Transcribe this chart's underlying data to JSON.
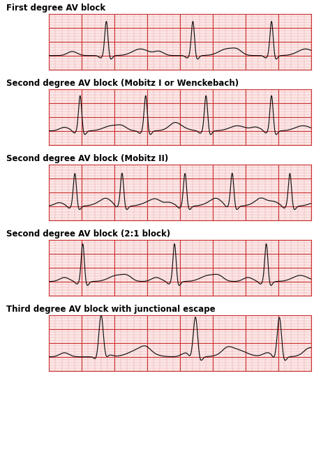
{
  "title_fontsize": 8.5,
  "title_fontweight": "bold",
  "ecg_color": "#111111",
  "grid_major_color": "#cc3333",
  "grid_minor_color": "#e8aaaa",
  "panel_bg": "#fce8e8",
  "white_bg": "#ffffff",
  "panels": [
    {
      "title": "First degree AV block",
      "type": "first_degree"
    },
    {
      "title": "Second degree AV block (Mobitz I or Wenckebach)",
      "type": "mobitz1"
    },
    {
      "title": "Second degree AV block (Mobitz II)",
      "type": "mobitz2"
    },
    {
      "title": "Second degree AV block (2:1 block)",
      "type": "block21"
    },
    {
      "title": "Third degree AV block with junctional escape",
      "type": "third_degree"
    }
  ],
  "fig_width": 4.5,
  "fig_height": 6.51
}
